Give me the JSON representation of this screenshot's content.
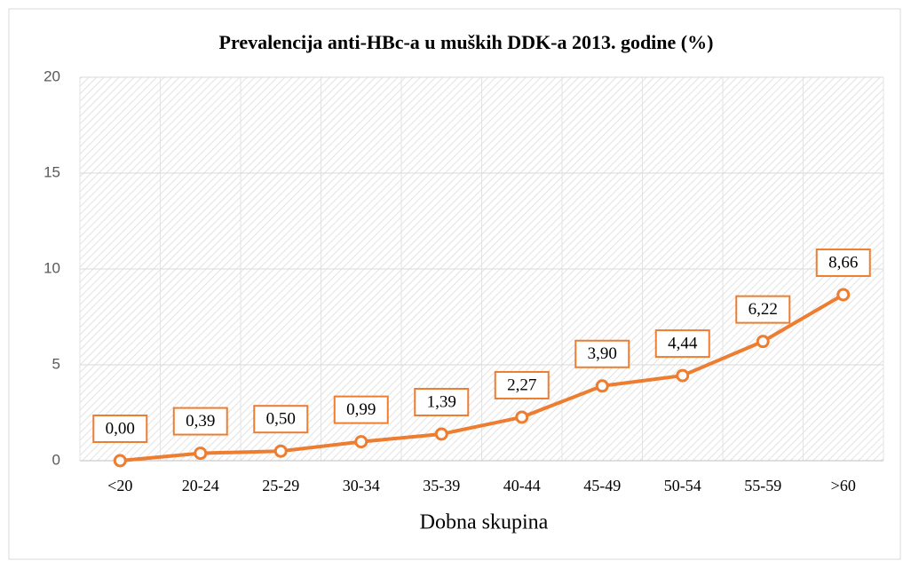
{
  "chart_data": {
    "type": "line",
    "title": "Prevalencija anti-HBc-a u muških  DDK-a 2013. godine (%)",
    "x_label": "Dobna skupina",
    "categories": [
      "<20",
      "20-24",
      "25-29",
      "30-34",
      "35-39",
      "40-44",
      "45-49",
      "50-54",
      "55-59",
      ">60"
    ],
    "series": [
      {
        "name": "anti-HBc",
        "color": "#ed7d31",
        "values": [
          0.0,
          0.39,
          0.5,
          0.99,
          1.39,
          2.27,
          3.9,
          4.44,
          6.22,
          8.66
        ],
        "value_labels": [
          "0,00",
          "0,39",
          "0,50",
          "0,99",
          "1,39",
          "2,27",
          "3,90",
          "4,44",
          "6,22",
          "8,66"
        ]
      }
    ],
    "ylim": [
      0,
      20
    ],
    "yticks": [
      0,
      5,
      10,
      15,
      20
    ],
    "grid": true
  }
}
